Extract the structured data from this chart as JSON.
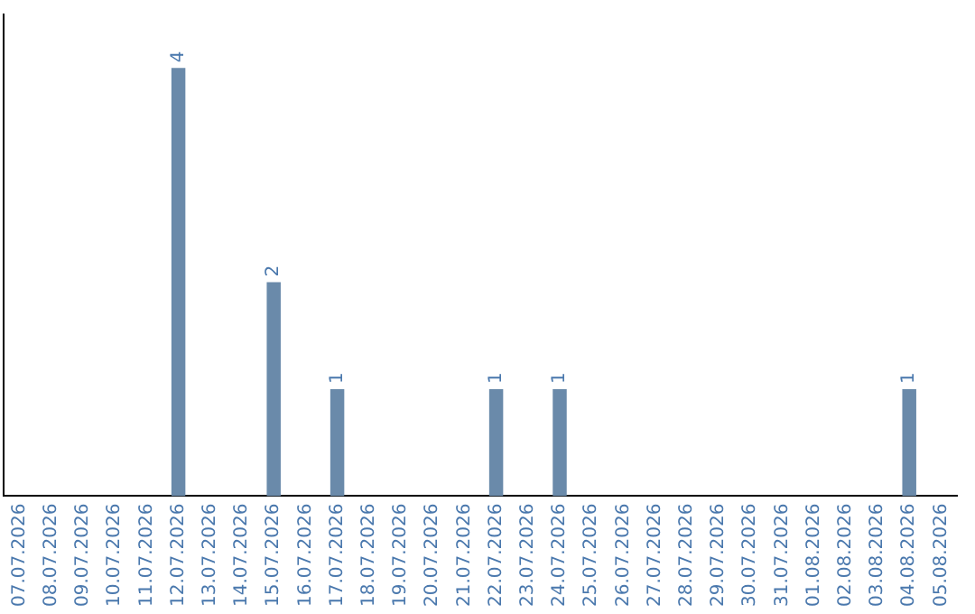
{
  "chart_data": {
    "type": "bar",
    "categories": [
      "07.07.2026",
      "08.07.2026",
      "09.07.2026",
      "10.07.2026",
      "11.07.2026",
      "12.07.2026",
      "13.07.2026",
      "14.07.2026",
      "15.07.2026",
      "16.07.2026",
      "17.07.2026",
      "18.07.2026",
      "19.07.2026",
      "20.07.2026",
      "21.07.2026",
      "22.07.2026",
      "23.07.2026",
      "24.07.2026",
      "25.07.2026",
      "26.07.2026",
      "27.07.2026",
      "28.07.2026",
      "29.07.2026",
      "30.07.2026",
      "31.07.2026",
      "01.08.2026",
      "02.08.2026",
      "03.08.2026",
      "04.08.2026",
      "05.08.2026"
    ],
    "values": [
      0,
      0,
      0,
      0,
      0,
      4,
      0,
      0,
      2,
      0,
      1,
      0,
      0,
      0,
      0,
      1,
      0,
      1,
      0,
      0,
      0,
      0,
      0,
      0,
      0,
      0,
      0,
      0,
      1,
      0
    ],
    "value_labels": [
      null,
      null,
      null,
      null,
      null,
      "4",
      null,
      null,
      "2",
      null,
      "1",
      null,
      null,
      null,
      null,
      "1",
      null,
      "1",
      null,
      null,
      null,
      null,
      null,
      null,
      null,
      null,
      null,
      null,
      "1",
      null
    ],
    "color": "#6a8aaa",
    "grid": false,
    "legend": false,
    "tick_labels": "x"
  }
}
